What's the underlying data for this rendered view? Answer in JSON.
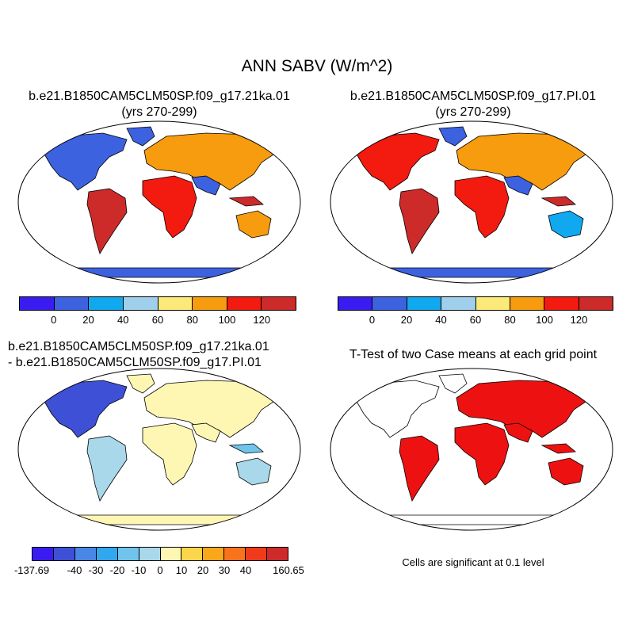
{
  "title": "ANN SABV (W/m^2)",
  "panels": {
    "case1": {
      "title_line1": "b.e21.B1850CAM5CLM50SP.f09_g17.21ka.01",
      "title_line2": "(yrs 270-299)"
    },
    "case2": {
      "title_line1": "b.e21.B1850CAM5CLM50SP.f09_g17.PI.01",
      "title_line2": "(yrs 270-299)"
    },
    "diff": {
      "title_line1": "b.e21.B1850CAM5CLM50SP.f09_g17.21ka.01",
      "title_line2": "- b.e21.B1850CAM5CLM50SP.f09_g17.PI.01"
    },
    "ttest": {
      "title_line1": "T-Test of two Case means at each grid point",
      "note": "Cells are significant at 0.1 level"
    }
  },
  "colorbars": {
    "main": {
      "colors": [
        "#3a1cf0",
        "#3c62e0",
        "#10a8ef",
        "#9fcfea",
        "#fbe97a",
        "#f79c0e",
        "#f31a10",
        "#cd2a2a"
      ],
      "labels": [
        "0",
        "20",
        "40",
        "60",
        "80",
        "100",
        "120"
      ]
    },
    "diff": {
      "colors": [
        "#3a1cf0",
        "#3e50d6",
        "#4a86e4",
        "#30a7ef",
        "#70c4ec",
        "#a8d8ea",
        "#fef7b4",
        "#fbd64c",
        "#f8a818",
        "#f7741c",
        "#f03a1c",
        "#cd2a2a"
      ],
      "labels": [
        "-137.69",
        "-40",
        "-30",
        "-20",
        "-10",
        "0",
        "10",
        "20",
        "30",
        "40",
        "160.65"
      ]
    }
  },
  "map_colors": {
    "ocean": "#ffffff",
    "coast": "#000000",
    "significant": "#ee1111"
  }
}
